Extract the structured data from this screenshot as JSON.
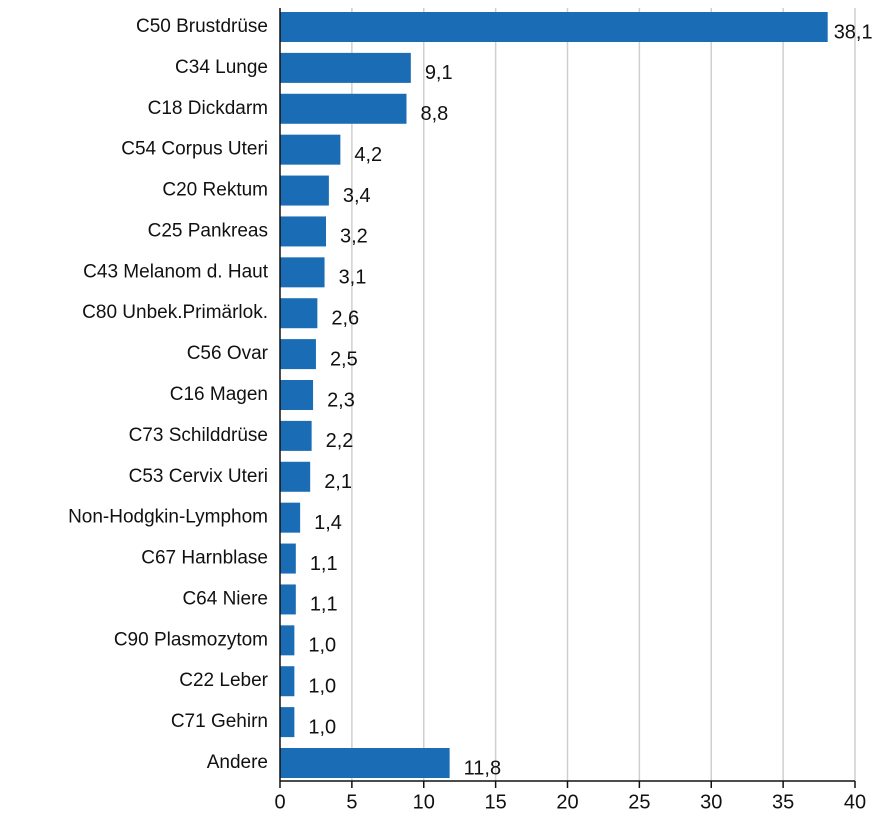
{
  "chart_data": {
    "type": "bar",
    "orientation": "horizontal",
    "categories": [
      "C50 Brustdrüse",
      "C34 Lunge",
      "C18 Dickdarm",
      "C54 Corpus Uteri",
      "C20 Rektum",
      "C25 Pankreas",
      "C43 Melanom d. Haut",
      "C80 Unbek.Primärlok.",
      "C56 Ovar",
      "C16 Magen",
      "C73 Schilddrüse",
      "C53 Cervix Uteri",
      "Non-Hodgkin-Lymphom",
      "C67 Harnblase",
      "C64 Niere",
      "C90 Plasmozytom",
      "C22 Leber",
      "C71 Gehirn",
      "Andere"
    ],
    "values": [
      38.1,
      9.1,
      8.8,
      4.2,
      3.4,
      3.2,
      3.1,
      2.6,
      2.5,
      2.3,
      2.2,
      2.1,
      1.4,
      1.1,
      1.1,
      1.0,
      1.0,
      1.0,
      11.8
    ],
    "value_labels": [
      "38,1",
      "9,1",
      "8,8",
      "4,2",
      "3,4",
      "3,2",
      "3,1",
      "2,6",
      "2,5",
      "2,3",
      "2,2",
      "2,1",
      "1,4",
      "1,1",
      "1,1",
      "1,0",
      "1,0",
      "1,0",
      "11,8"
    ],
    "color": "#1a6db5",
    "xlim": [
      0,
      40
    ],
    "xticks": [
      0,
      5,
      10,
      15,
      20,
      25,
      30,
      35,
      40
    ],
    "grid": true
  }
}
